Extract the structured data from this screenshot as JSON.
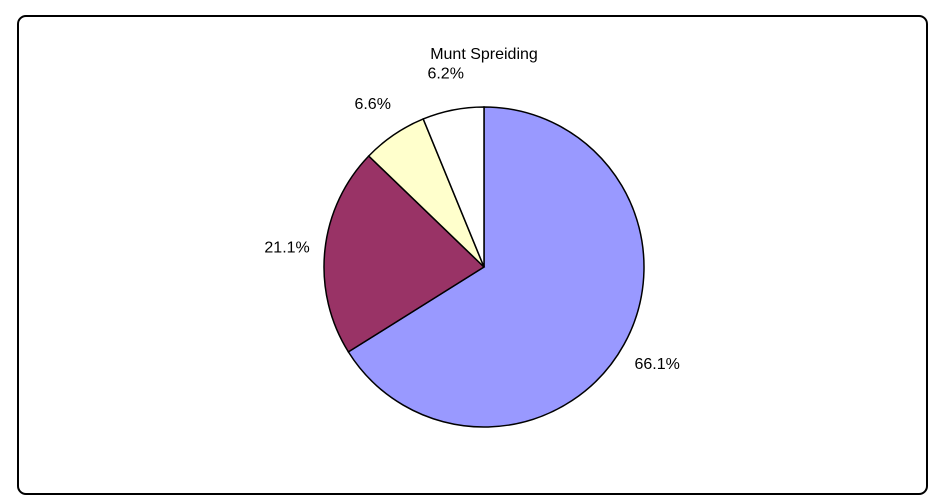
{
  "chart_data": {
    "type": "pie",
    "title": "Munt Spreiding",
    "slices": [
      {
        "value": 66.1,
        "label": "66.1%",
        "color": "#9999ff"
      },
      {
        "value": 21.1,
        "label": "21.1%",
        "color": "#993366"
      },
      {
        "value": 6.6,
        "label": "6.6%",
        "color": "#ffffcc"
      },
      {
        "value": 6.2,
        "label": "6.2%",
        "color": "#ffffff"
      }
    ],
    "start_angle": "12 o'clock",
    "direction": "clockwise",
    "legend": "none"
  }
}
